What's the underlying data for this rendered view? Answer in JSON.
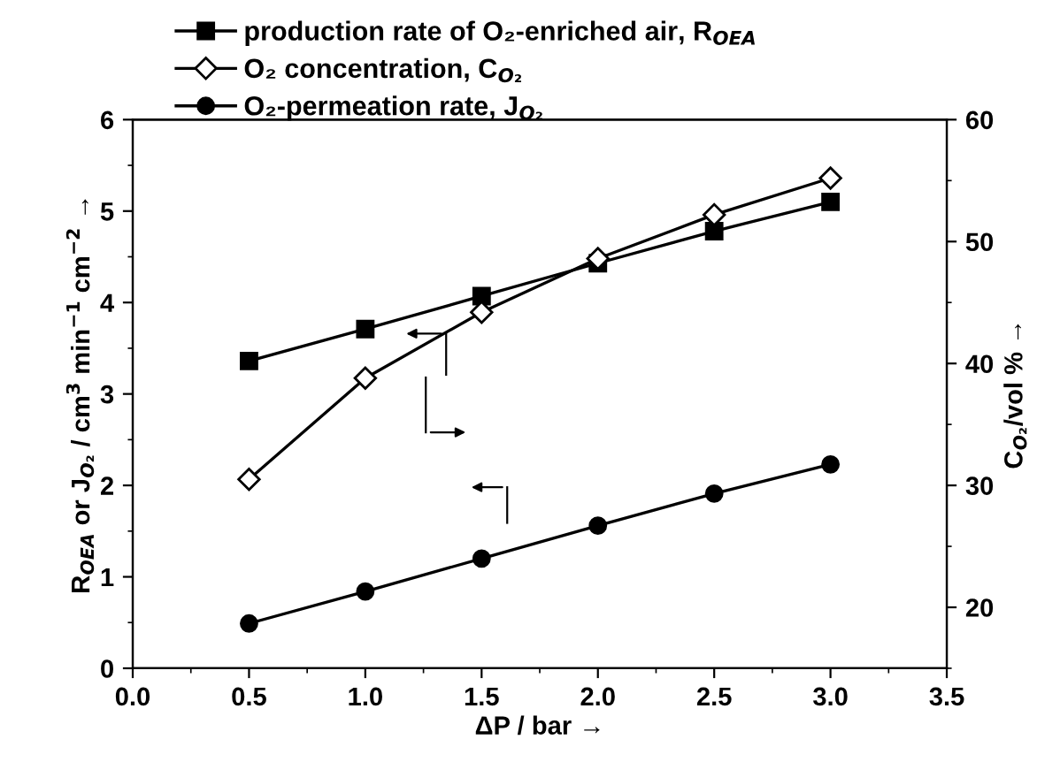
{
  "chart_data": {
    "type": "line",
    "x": [
      0.5,
      1.0,
      1.5,
      2.0,
      2.5,
      3.0
    ],
    "series": [
      {
        "name": "production rate of O₂-enriched air, R$_{OEA}$",
        "color": "#000000",
        "marker": "square",
        "values": [
          3.36,
          3.71,
          4.07,
          4.43,
          4.78,
          5.1
        ]
      },
      {
        "name": "O₂ concentration, C$_{O₂}$",
        "color": "#000000",
        "marker": "diamond",
        "axis": "y2",
        "values": [
          30.5,
          38.8,
          44.2,
          48.6,
          52.2,
          55.2
        ]
      },
      {
        "name": "O₂-permeation rate, J$_{O₂}$",
        "color": "#000000",
        "marker": "circle",
        "values": [
          0.49,
          0.84,
          1.2,
          1.56,
          1.91,
          2.23
        ]
      }
    ],
    "xlabel": "ΔP / bar →",
    "ylabel": "R$_{OEA}$ or J$_{O₂}$ / cm$^{3}$ min$^{−1}$ cm$^{−2}$ →",
    "y2label": "C$_{O₂}$/vol % →",
    "xlim": [
      0,
      3.5
    ],
    "xticks": [
      {
        "value": 0,
        "label": "0.0"
      },
      0.5,
      {
        "value": 1,
        "label": "1.0"
      },
      1.5,
      {
        "value": 2,
        "label": "2.0"
      },
      2.5,
      {
        "value": 3,
        "label": "3.0"
      },
      3.5
    ],
    "ylim": [
      0,
      6
    ],
    "yticks": [
      0,
      1,
      2,
      3,
      4,
      5,
      6
    ],
    "y2lim": [
      15,
      60
    ],
    "y2ticks": [
      20,
      30,
      40,
      50,
      60
    ],
    "legend": "top",
    "grid": false,
    "line_style": "solid"
  }
}
